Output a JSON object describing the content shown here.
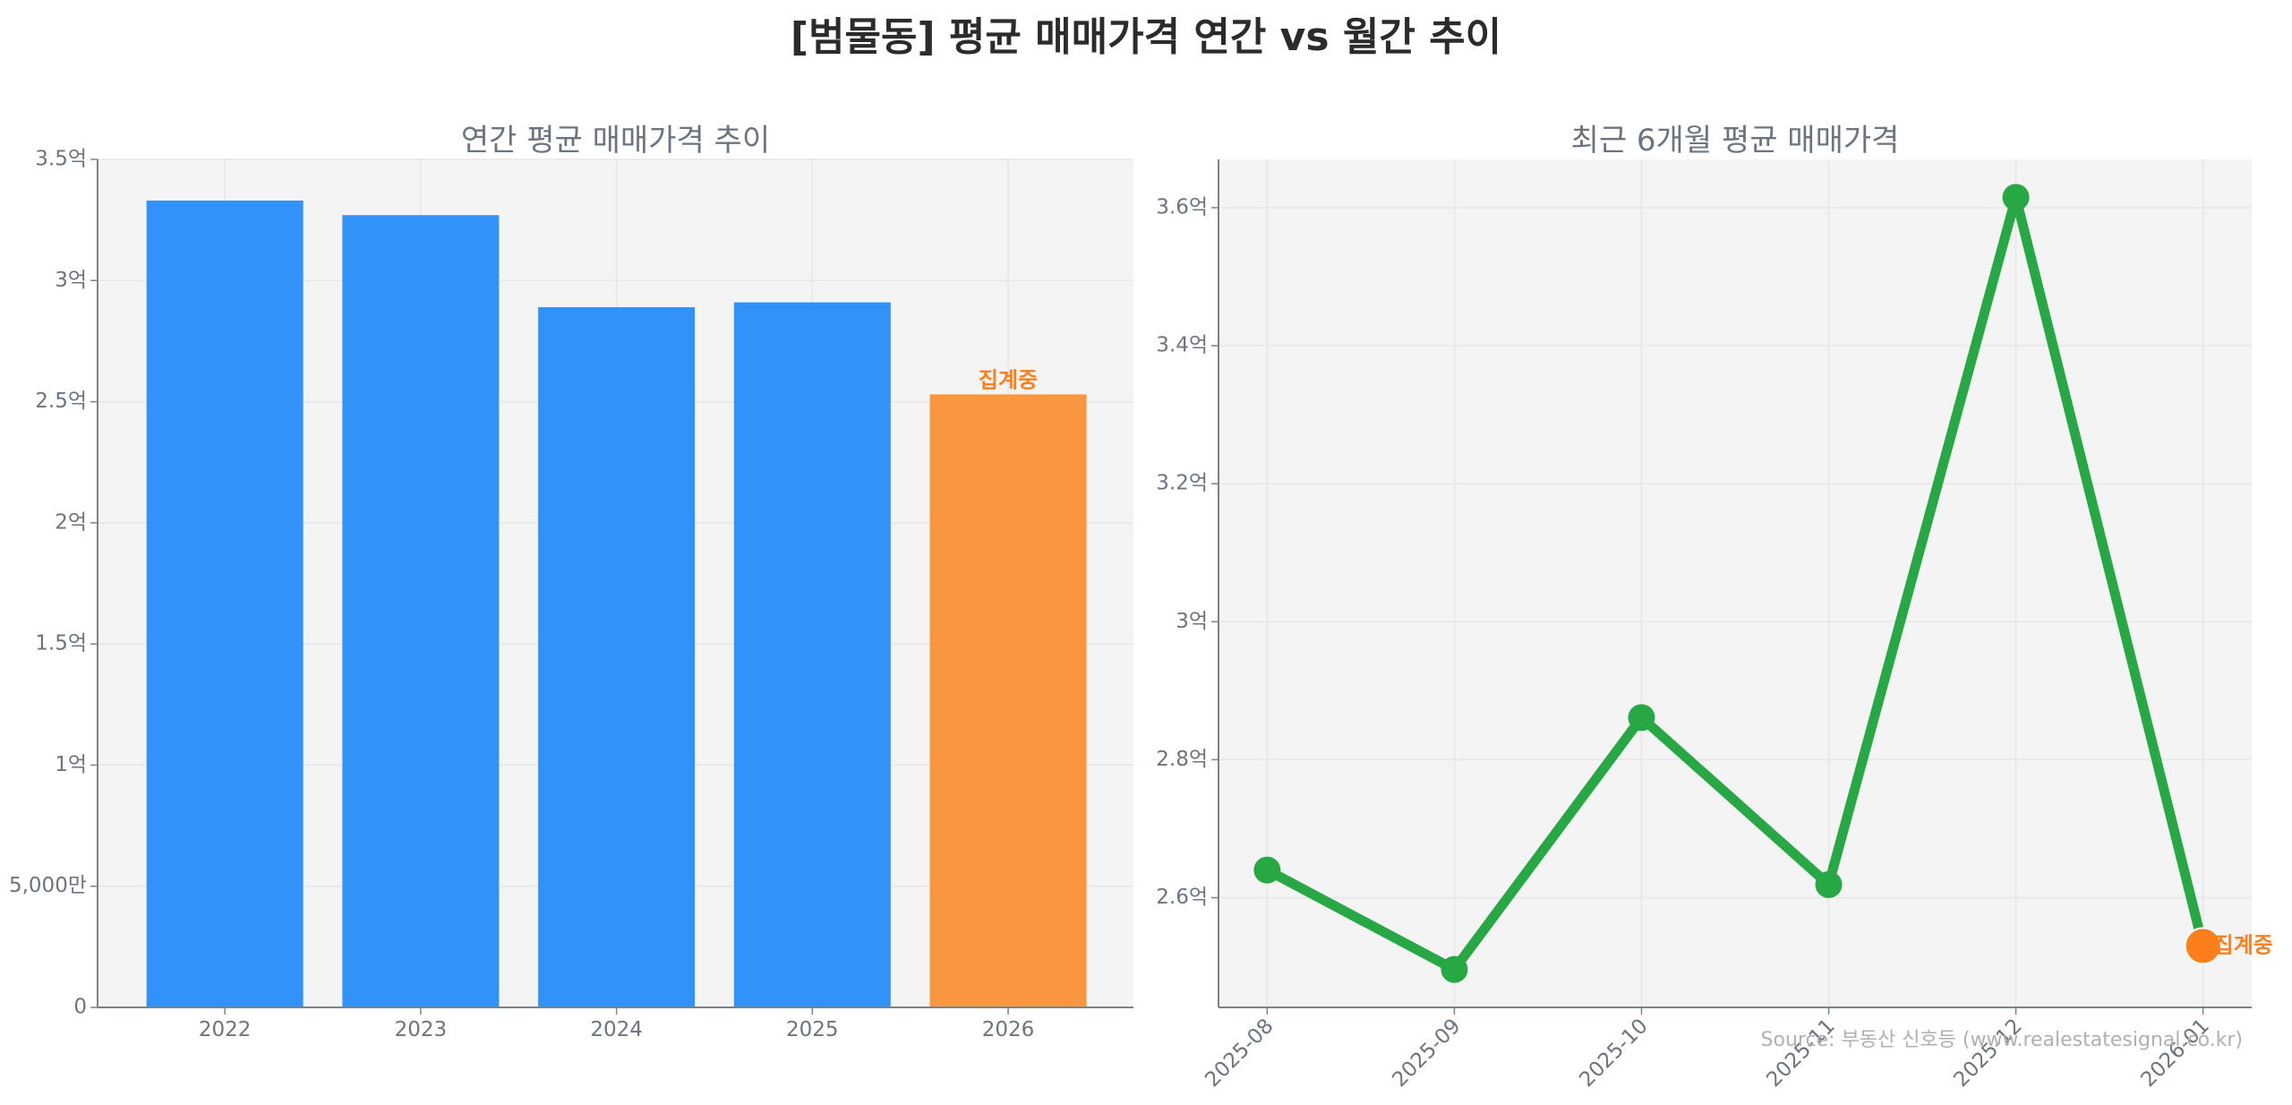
{
  "title": "[범물동] 평균 매매가격 연간 vs 월간 추이",
  "source": "Source: 부동산 신호등 (www.realestatesignal.co.kr)",
  "chart_data": [
    {
      "type": "bar",
      "title": "연간 평균 매매가격 추이",
      "categories": [
        "2022",
        "2023",
        "2024",
        "2025",
        "2026"
      ],
      "values": [
        3.33,
        3.27,
        2.89,
        2.91,
        2.53
      ],
      "unit": "억",
      "ylim": [
        0,
        3.5
      ],
      "yticks": [
        0,
        0.5,
        1,
        1.5,
        2,
        2.5,
        3,
        3.5
      ],
      "ytick_labels": [
        "0",
        "5,000만",
        "1억",
        "1.5억",
        "2억",
        "2.5억",
        "3억",
        "3.5억"
      ],
      "bar_colors": [
        "#3193fa",
        "#3193fa",
        "#3193fa",
        "#3193fa",
        "#f9963f"
      ],
      "annotation": {
        "category": "2026",
        "text": "집계중"
      },
      "grid": true
    },
    {
      "type": "line",
      "title": "최근 6개월 평균 매매가격",
      "x": [
        "2025-08",
        "2025-09",
        "2025-10",
        "2025-11",
        "2025-12",
        "2026-01"
      ],
      "values": [
        2.64,
        2.496,
        2.861,
        2.619,
        3.615,
        2.53
      ],
      "unit": "억",
      "ylim": [
        2.441,
        3.67
      ],
      "yticks": [
        2.6,
        2.8,
        3.0,
        3.2,
        3.4,
        3.6
      ],
      "ytick_labels": [
        "2.6억",
        "2.8억",
        "3억",
        "3.2억",
        "3.4억",
        "3.6억"
      ],
      "line_color": "#28a745",
      "highlight": {
        "x": "2026-01",
        "color": "#fd7f1c",
        "text": "집계중"
      },
      "grid": true
    }
  ]
}
